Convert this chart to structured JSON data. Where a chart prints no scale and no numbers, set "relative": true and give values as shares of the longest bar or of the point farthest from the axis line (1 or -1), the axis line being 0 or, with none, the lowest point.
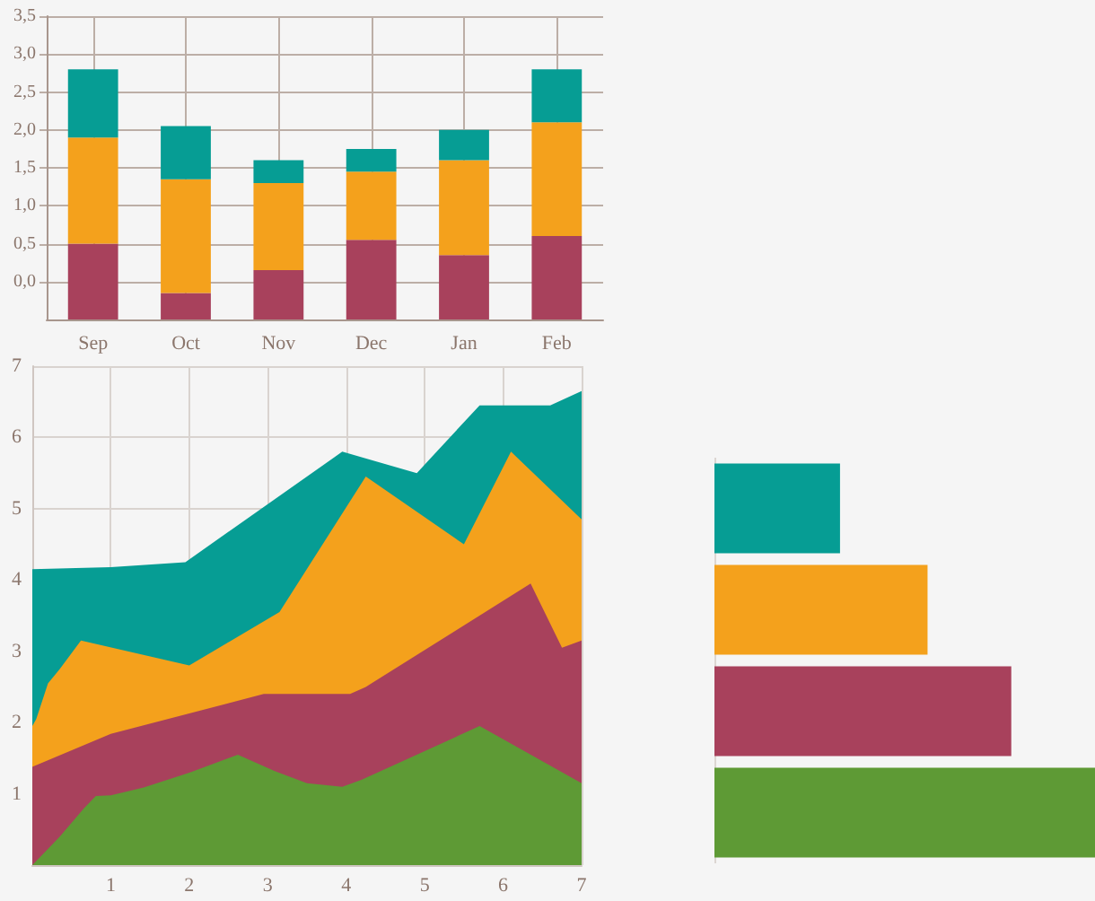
{
  "chart_data": [
    {
      "type": "bar",
      "categories": [
        "Sep",
        "Oct",
        "Nov",
        "Dec",
        "Jan",
        "Feb"
      ],
      "series": [
        {
          "color": "#a8415c",
          "base": [
            -0.5,
            -0.5,
            -0.5,
            -0.5,
            -0.5,
            -0.5
          ],
          "values": [
            1.0,
            0.35,
            0.65,
            1.05,
            0.85,
            1.1
          ]
        },
        {
          "color": "#f4a11c",
          "base": [
            0.5,
            -0.15,
            0.15,
            0.55,
            0.35,
            0.6
          ],
          "values": [
            1.4,
            1.5,
            1.15,
            0.9,
            1.25,
            1.5
          ]
        },
        {
          "color": "#069d94",
          "base": [
            1.9,
            1.35,
            1.3,
            1.45,
            1.6,
            2.1
          ],
          "values": [
            0.9,
            0.7,
            0.3,
            0.3,
            0.4,
            0.7
          ]
        }
      ],
      "ylim": [
        -0.5,
        3.5
      ],
      "yticks": [
        {
          "value": 0,
          "label": "0,0"
        },
        {
          "value": 0.5,
          "label": "0,5"
        },
        {
          "value": 1,
          "label": "1,0"
        },
        {
          "value": 1.5,
          "label": "1,5"
        },
        {
          "value": 2,
          "label": "2,0"
        },
        {
          "value": 2.5,
          "label": "2,5"
        },
        {
          "value": 3,
          "label": "3,0"
        },
        {
          "value": 3.5,
          "label": "3,5"
        }
      ],
      "grid": true
    },
    {
      "type": "area",
      "series": [
        {
          "color": "#069d94",
          "x": [
            0,
            1,
            1.95,
            3.95,
            4.9,
            5.7,
            6.6,
            7
          ],
          "values": [
            4.15,
            4.18,
            4.25,
            5.8,
            5.5,
            6.45,
            6.45,
            6.65
          ]
        },
        {
          "color": "#f4a11c",
          "x": [
            0,
            0.05,
            0.2,
            0.35,
            0.62,
            2,
            3.15,
            4.25,
            5.5,
            6.1,
            7
          ],
          "values": [
            1.95,
            2.05,
            2.55,
            2.75,
            3.15,
            2.8,
            3.55,
            5.45,
            4.5,
            5.8,
            4.85
          ]
        },
        {
          "color": "#a8415c",
          "x": [
            0,
            1,
            2.95,
            4.05,
            4.25,
            6.35,
            6.75,
            7
          ],
          "values": [
            1.38,
            1.84,
            2.4,
            2.4,
            2.5,
            3.95,
            3.05,
            3.15
          ]
        },
        {
          "color": "#5e9a35",
          "x": [
            0,
            0.35,
            0.66,
            0.81,
            1,
            1.42,
            2.01,
            2.62,
            3.09,
            3.5,
            3.95,
            4.2,
            5.7,
            7
          ],
          "values": [
            0,
            0.4,
            0.8,
            0.97,
            0.98,
            1.09,
            1.3,
            1.55,
            1.32,
            1.15,
            1.1,
            1.2,
            1.95,
            1.15
          ]
        }
      ],
      "xlim": [
        0,
        7
      ],
      "xticks": [
        1,
        2,
        3,
        4,
        5,
        6,
        7
      ],
      "ylim": [
        0,
        7
      ],
      "yticks": [
        1,
        2,
        3,
        4,
        5,
        6,
        7
      ],
      "grid": true
    },
    {
      "type": "bar",
      "orientation": "horizontal",
      "relative": true,
      "categories": [
        null,
        null,
        null,
        null
      ],
      "values": [
        0.33,
        0.56,
        0.78,
        1
      ],
      "colors": [
        "#069d94",
        "#f4a11c",
        "#a8415c",
        "#5e9a35"
      ],
      "tick_labels": false
    }
  ]
}
